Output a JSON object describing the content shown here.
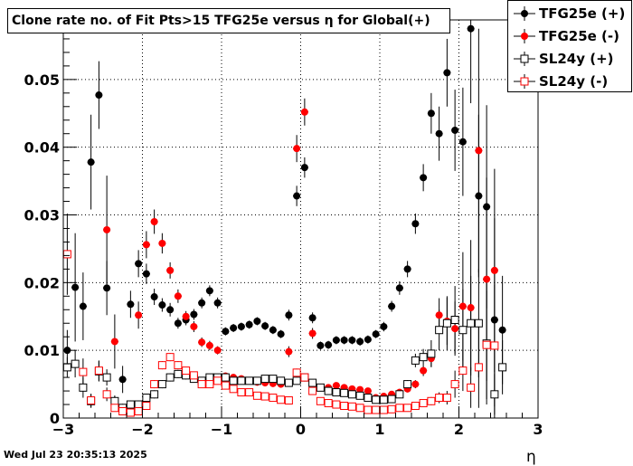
{
  "chart_data": {
    "type": "scatter",
    "title": "Clone rate no. of Fit Pts>15 TFG25e versus η for Global(+)",
    "xlabel": "η",
    "ylabel": "",
    "xlim": [
      -3,
      3
    ],
    "ylim": [
      0,
      0.0588
    ],
    "xticks": [
      -3,
      -2,
      -1,
      0,
      1,
      2,
      3
    ],
    "xtick_labels": [
      "−3",
      "−2",
      "−1",
      "0",
      "1",
      "2",
      "3"
    ],
    "yticks": [
      0,
      0.01,
      0.02,
      0.03,
      0.04,
      0.05
    ],
    "ytick_labels": [
      "0",
      "0.01",
      "0.02",
      "0.03",
      "0.04",
      "0.05"
    ],
    "grid": true,
    "legend_position": "top-right",
    "series": [
      {
        "name": "TFG25e (+)",
        "marker": "filled-circle",
        "color": "#000000",
        "x": [
          -2.95,
          -2.85,
          -2.75,
          -2.65,
          -2.55,
          -2.45,
          -2.35,
          -2.25,
          -2.15,
          -2.05,
          -1.95,
          -1.85,
          -1.75,
          -1.65,
          -1.55,
          -1.45,
          -1.35,
          -1.25,
          -1.15,
          -1.05,
          -0.95,
          -0.85,
          -0.75,
          -0.65,
          -0.55,
          -0.45,
          -0.35,
          -0.25,
          -0.15,
          -0.05,
          0.05,
          0.15,
          0.25,
          0.35,
          0.45,
          0.55,
          0.65,
          0.75,
          0.85,
          0.95,
          1.05,
          1.15,
          1.25,
          1.35,
          1.45,
          1.55,
          1.65,
          1.75,
          1.85,
          1.95,
          2.05,
          2.15,
          2.25,
          2.35,
          2.45,
          2.55
        ],
        "y": [
          0.01,
          0.0193,
          0.0165,
          0.0378,
          0.0477,
          0.0192,
          0.0023,
          0.0057,
          0.0168,
          0.0228,
          0.0213,
          0.0179,
          0.0167,
          0.016,
          0.014,
          0.0145,
          0.0153,
          0.017,
          0.0188,
          0.017,
          0.0128,
          0.0133,
          0.0135,
          0.0138,
          0.0143,
          0.0136,
          0.013,
          0.0124,
          0.0152,
          0.0328,
          0.037,
          0.0148,
          0.0107,
          0.0108,
          0.0115,
          0.0115,
          0.0115,
          0.0113,
          0.0116,
          0.0124,
          0.0135,
          0.0165,
          0.0192,
          0.022,
          0.0287,
          0.0355,
          0.045,
          0.042,
          0.051,
          0.0425,
          0.0408,
          0.0575,
          0.0328,
          0.0312,
          0.0145,
          0.013
        ],
        "err": [
          0.003,
          0.008,
          0.005,
          0.007,
          0.005,
          0.004,
          0.001,
          0.002,
          0.002,
          0.002,
          0.0015,
          0.0012,
          0.001,
          0.001,
          0.0008,
          0.0008,
          0.0008,
          0.0008,
          0.0008,
          0.0008,
          0.0006,
          0.0006,
          0.0006,
          0.0006,
          0.0006,
          0.0006,
          0.0006,
          0.0006,
          0.0008,
          0.0015,
          0.0015,
          0.0008,
          0.0006,
          0.0006,
          0.0006,
          0.0006,
          0.0006,
          0.0006,
          0.0006,
          0.0006,
          0.0007,
          0.0008,
          0.001,
          0.0012,
          0.0015,
          0.002,
          0.003,
          0.004,
          0.005,
          0.006,
          0.008,
          0.011,
          0.012,
          0.015,
          0.015,
          0.008
        ]
      },
      {
        "name": "TFG25e (-)",
        "marker": "filled-circle",
        "color": "#ff0000",
        "x": [
          -2.45,
          -2.35,
          -2.05,
          -1.95,
          -1.85,
          -1.75,
          -1.65,
          -1.55,
          -1.45,
          -1.35,
          -1.25,
          -1.15,
          -1.05,
          -0.95,
          -0.85,
          -0.75,
          -0.65,
          -0.55,
          -0.45,
          -0.35,
          -0.25,
          -0.15,
          -0.05,
          0.05,
          0.15,
          0.25,
          0.35,
          0.45,
          0.55,
          0.65,
          0.75,
          0.85,
          0.95,
          1.05,
          1.15,
          1.25,
          1.35,
          1.45,
          1.55,
          1.65,
          1.75,
          1.85,
          1.95,
          2.05,
          2.15,
          2.25,
          2.35,
          2.45
        ],
        "y": [
          0.0278,
          0.0113,
          0.0152,
          0.0256,
          0.029,
          0.0258,
          0.0218,
          0.018,
          0.015,
          0.0135,
          0.0112,
          0.0107,
          0.01,
          0.0062,
          0.006,
          0.0058,
          0.0055,
          0.0053,
          0.0052,
          0.0051,
          0.005,
          0.0098,
          0.0398,
          0.0452,
          0.0125,
          0.0045,
          0.0045,
          0.0048,
          0.0045,
          0.0043,
          0.0042,
          0.004,
          0.003,
          0.0032,
          0.0035,
          0.0038,
          0.0043,
          0.005,
          0.007,
          0.0088,
          0.0152,
          0.0143,
          0.0132,
          0.0165,
          0.0163,
          0.0395,
          0.0205,
          0.0218
        ],
        "err": [
          0.008,
          0.004,
          0.002,
          0.002,
          0.0018,
          0.0015,
          0.0012,
          0.001,
          0.0008,
          0.0008,
          0.0007,
          0.0007,
          0.0006,
          0.0005,
          0.0005,
          0.0005,
          0.0005,
          0.0005,
          0.0005,
          0.0005,
          0.0005,
          0.0008,
          0.002,
          0.002,
          0.0008,
          0.0004,
          0.0004,
          0.0004,
          0.0004,
          0.0004,
          0.0004,
          0.0004,
          0.0004,
          0.0004,
          0.0004,
          0.0005,
          0.0005,
          0.0006,
          0.0008,
          0.0012,
          0.0025,
          0.0035,
          0.004,
          0.008,
          0.01,
          0.018,
          0.015,
          0.015
        ]
      },
      {
        "name": "SL24y (+)",
        "marker": "open-square",
        "color": "#000000",
        "x": [
          -2.95,
          -2.85,
          -2.75,
          -2.65,
          -2.55,
          -2.45,
          -2.35,
          -2.25,
          -2.15,
          -2.05,
          -1.95,
          -1.85,
          -1.75,
          -1.65,
          -1.55,
          -1.45,
          -1.35,
          -1.25,
          -1.15,
          -1.05,
          -0.95,
          -0.85,
          -0.75,
          -0.65,
          -0.55,
          -0.45,
          -0.35,
          -0.25,
          -0.15,
          -0.05,
          0.05,
          0.15,
          0.25,
          0.35,
          0.45,
          0.55,
          0.65,
          0.75,
          0.85,
          0.95,
          1.05,
          1.15,
          1.25,
          1.35,
          1.45,
          1.55,
          1.65,
          1.75,
          1.85,
          1.95,
          2.05,
          2.15,
          2.25,
          2.35,
          2.45,
          2.55
        ],
        "y": [
          0.0075,
          0.008,
          0.0045,
          0.0025,
          0.0069,
          0.006,
          0.0025,
          0.0015,
          0.002,
          0.002,
          0.003,
          0.0035,
          0.005,
          0.006,
          0.0065,
          0.0063,
          0.0058,
          0.0055,
          0.006,
          0.006,
          0.006,
          0.0055,
          0.0055,
          0.0055,
          0.0055,
          0.0058,
          0.0058,
          0.0055,
          0.0052,
          0.0055,
          0.006,
          0.0052,
          0.0045,
          0.004,
          0.0038,
          0.0037,
          0.0035,
          0.0033,
          0.003,
          0.0027,
          0.0027,
          0.0028,
          0.0035,
          0.005,
          0.0085,
          0.009,
          0.0095,
          0.013,
          0.014,
          0.0145,
          0.013,
          0.014,
          0.014,
          0.011,
          0.0035,
          0.0075
        ],
        "err": [
          0.0015,
          0.002,
          0.0015,
          0.001,
          0.0015,
          0.0012,
          0.0008,
          0.0006,
          0.0006,
          0.0006,
          0.0006,
          0.0006,
          0.0006,
          0.0006,
          0.0006,
          0.0006,
          0.0005,
          0.0005,
          0.0005,
          0.0005,
          0.0005,
          0.0005,
          0.0005,
          0.0005,
          0.0005,
          0.0005,
          0.0005,
          0.0005,
          0.0005,
          0.0005,
          0.0005,
          0.0005,
          0.0005,
          0.0004,
          0.0004,
          0.0004,
          0.0004,
          0.0004,
          0.0004,
          0.0004,
          0.0004,
          0.0004,
          0.0005,
          0.0006,
          0.001,
          0.0012,
          0.002,
          0.003,
          0.004,
          0.005,
          0.006,
          0.007,
          0.008,
          0.009,
          0.003,
          0.004
        ]
      },
      {
        "name": "SL24y (-)",
        "marker": "open-square",
        "color": "#ff0000",
        "x": [
          -2.95,
          -2.75,
          -2.65,
          -2.55,
          -2.45,
          -2.35,
          -2.25,
          -2.15,
          -2.05,
          -1.95,
          -1.85,
          -1.75,
          -1.65,
          -1.55,
          -1.45,
          -1.35,
          -1.25,
          -1.15,
          -1.05,
          -0.95,
          -0.85,
          -0.75,
          -0.65,
          -0.55,
          -0.45,
          -0.35,
          -0.25,
          -0.15,
          -0.05,
          0.05,
          0.15,
          0.25,
          0.35,
          0.45,
          0.55,
          0.65,
          0.75,
          0.85,
          0.95,
          1.05,
          1.15,
          1.25,
          1.35,
          1.45,
          1.55,
          1.65,
          1.75,
          1.85,
          1.95,
          2.05,
          2.15,
          2.25,
          2.35,
          2.45
        ],
        "y": [
          0.0242,
          0.0068,
          0.0026,
          0.007,
          0.0035,
          0.0015,
          0.001,
          0.0008,
          0.001,
          0.0018,
          0.005,
          0.0078,
          0.009,
          0.0078,
          0.007,
          0.0063,
          0.005,
          0.005,
          0.0055,
          0.0048,
          0.0043,
          0.0038,
          0.0038,
          0.0033,
          0.0032,
          0.003,
          0.0027,
          0.0026,
          0.0067,
          0.006,
          0.004,
          0.0025,
          0.0022,
          0.002,
          0.0018,
          0.0017,
          0.0015,
          0.0012,
          0.0012,
          0.0012,
          0.0013,
          0.0015,
          0.0015,
          0.0018,
          0.0022,
          0.0025,
          0.003,
          0.003,
          0.005,
          0.007,
          0.0045,
          0.0075,
          0.0108,
          0.0107
        ],
        "err": [
          0.006,
          0.002,
          0.001,
          0.0015,
          0.001,
          0.0005,
          0.0004,
          0.0004,
          0.0004,
          0.0005,
          0.0006,
          0.0006,
          0.0006,
          0.0006,
          0.0005,
          0.0005,
          0.0005,
          0.0004,
          0.0004,
          0.0004,
          0.0004,
          0.0004,
          0.0004,
          0.0004,
          0.0004,
          0.0004,
          0.0004,
          0.0004,
          0.0006,
          0.0006,
          0.0004,
          0.0003,
          0.0003,
          0.0003,
          0.0003,
          0.0003,
          0.0003,
          0.0003,
          0.0003,
          0.0003,
          0.0003,
          0.0003,
          0.0003,
          0.0004,
          0.0005,
          0.0006,
          0.0008,
          0.001,
          0.002,
          0.003,
          0.003,
          0.006,
          0.008,
          0.009
        ]
      }
    ]
  },
  "footer": {
    "timestamp": "Wed Jul 23 20:35:13 2025"
  }
}
